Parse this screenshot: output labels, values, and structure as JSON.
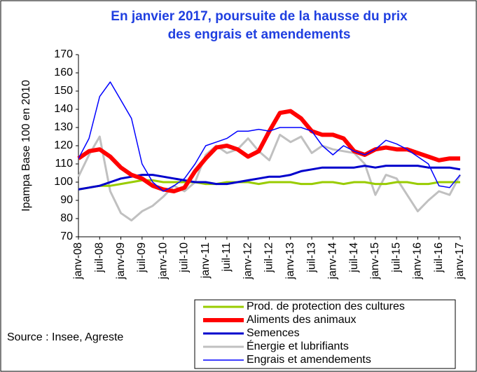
{
  "chart_data": {
    "type": "line",
    "title": [
      "En janvier 2017, poursuite de la hausse du prix",
      "des engrais et amendements"
    ],
    "y_label": "Ipampa Base 100 en 2010",
    "source": "Source : Insee, Agreste",
    "categories": [
      "janv-08",
      null,
      "juil-08",
      null,
      "janv-09",
      null,
      "juil-09",
      null,
      "janv-10",
      null,
      "juil-10",
      null,
      "janv-11",
      null,
      "juil-11",
      null,
      "janv-12",
      null,
      "juil-12",
      null,
      "janv-13",
      null,
      "juil-13",
      null,
      "janv-14",
      null,
      "juil-14",
      null,
      "janv-15",
      null,
      "juil-15",
      null,
      "janv-16",
      null,
      "juil-16",
      null,
      "janv-17"
    ],
    "ylim": [
      70,
      170
    ],
    "yticks": [
      70,
      80,
      90,
      100,
      110,
      120,
      130,
      140,
      150,
      160,
      170
    ],
    "series": [
      {
        "name": "Prod. de protection des cultures",
        "color": "#99cc00",
        "values": [
          96,
          97,
          98,
          98,
          99,
          100,
          101,
          101,
          100,
          100,
          100,
          100,
          99,
          99,
          100,
          100,
          100,
          99,
          100,
          100,
          100,
          99,
          99,
          100,
          100,
          99,
          100,
          100,
          99,
          99,
          100,
          100,
          99,
          99,
          100,
          100,
          100
        ]
      },
      {
        "name": "Aliments des animaux",
        "color": "#ff0000",
        "values": [
          113,
          117,
          118,
          114,
          108,
          104,
          102,
          98,
          96,
          95,
          97,
          106,
          113,
          119,
          120,
          118,
          114,
          117,
          128,
          138,
          139,
          135,
          128,
          126,
          126,
          124,
          117,
          115,
          118,
          119,
          118,
          118,
          116,
          114,
          112,
          113,
          113
        ]
      },
      {
        "name": "Semences",
        "color": "#0000cc",
        "values": [
          96,
          97,
          98,
          100,
          102,
          103,
          104,
          104,
          103,
          102,
          101,
          100,
          100,
          99,
          99,
          100,
          101,
          102,
          103,
          103,
          104,
          106,
          107,
          108,
          108,
          108,
          108,
          109,
          108,
          109,
          109,
          109,
          109,
          108,
          108,
          108,
          107
        ]
      },
      {
        "name": "Énergie et lubrifiants",
        "color": "#c0c0c0",
        "values": [
          103,
          115,
          125,
          95,
          83,
          79,
          84,
          87,
          92,
          98,
          95,
          100,
          115,
          120,
          116,
          118,
          124,
          117,
          112,
          126,
          122,
          125,
          116,
          120,
          118,
          117,
          116,
          110,
          93,
          104,
          102,
          93,
          84,
          90,
          95,
          93,
          104
        ]
      },
      {
        "name": "Engrais et amendements",
        "color": "#0000ff",
        "values": [
          113,
          124,
          147,
          155,
          145,
          135,
          110,
          100,
          95,
          98,
          102,
          110,
          120,
          122,
          124,
          128,
          128,
          129,
          128,
          130,
          130,
          130,
          128,
          120,
          115,
          120,
          117,
          115,
          118,
          123,
          121,
          118,
          114,
          110,
          98,
          97,
          104
        ]
      }
    ]
  }
}
